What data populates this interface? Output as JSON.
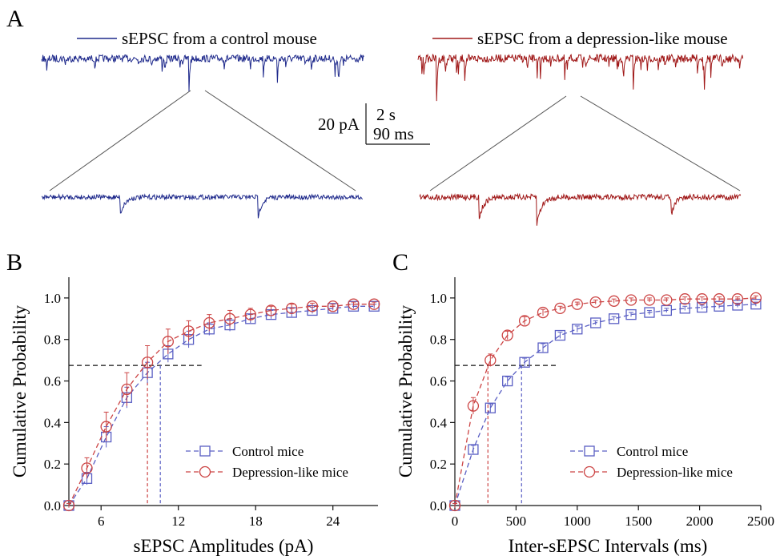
{
  "panel_a": {
    "label": "A",
    "legend_left": "sEPSC from a control mouse",
    "legend_right": "sEPSC from a depression-like mouse",
    "scale_y": "20 pA",
    "scale_x_top": "2 s",
    "scale_x_bottom": "90 ms"
  },
  "colors": {
    "control": "#1f2a8c",
    "depression": "#a01818",
    "control_light": "#5a5fc4",
    "depression_light": "#cc4444"
  },
  "chart_data": [
    {
      "panel": "B",
      "type": "line",
      "xlabel": "sEPSC Amplitudes (pA)",
      "ylabel": "Cumulative Probability",
      "xlim": [
        3.5,
        27.5
      ],
      "ylim": [
        0,
        1.1
      ],
      "xticks": [
        6,
        12,
        18,
        24
      ],
      "yticks": [
        0.0,
        0.2,
        0.4,
        0.6,
        0.8,
        1.0
      ],
      "ytick_labels": [
        "0.0",
        "0.2",
        "0.4",
        "0.6",
        "0.8",
        "1.0"
      ],
      "legend": [
        "Control mice",
        "Depression-like mice"
      ],
      "series": [
        {
          "name": "Control mice",
          "marker": "square",
          "x": [
            3.5,
            4.9,
            6.4,
            8.0,
            9.6,
            11.2,
            12.8,
            14.4,
            16.0,
            17.6,
            19.2,
            20.8,
            22.4,
            24.0,
            25.6,
            27.2
          ],
          "y": [
            0.0,
            0.13,
            0.33,
            0.52,
            0.64,
            0.73,
            0.8,
            0.85,
            0.87,
            0.9,
            0.92,
            0.93,
            0.94,
            0.95,
            0.96,
            0.96
          ],
          "err": [
            0.01,
            0.03,
            0.05,
            0.05,
            0.05,
            0.04,
            0.04,
            0.03,
            0.03,
            0.02,
            0.02,
            0.02,
            0.015,
            0.01,
            0.01,
            0.01
          ]
        },
        {
          "name": "Depression-like mice",
          "marker": "circle",
          "x": [
            3.5,
            4.9,
            6.4,
            8.0,
            9.6,
            11.2,
            12.8,
            14.4,
            16.0,
            17.6,
            19.2,
            20.8,
            22.4,
            24.0,
            25.6,
            27.2
          ],
          "y": [
            0.0,
            0.18,
            0.38,
            0.56,
            0.69,
            0.79,
            0.84,
            0.88,
            0.9,
            0.92,
            0.94,
            0.95,
            0.96,
            0.96,
            0.97,
            0.97
          ],
          "err": [
            0.01,
            0.05,
            0.07,
            0.08,
            0.08,
            0.06,
            0.05,
            0.04,
            0.04,
            0.03,
            0.02,
            0.02,
            0.015,
            0.01,
            0.01,
            0.01
          ]
        }
      ],
      "reference_y": 0.675,
      "reference_x_control": 10.6,
      "reference_x_depression": 9.6
    },
    {
      "panel": "C",
      "type": "line",
      "xlabel": "Inter-sEPSC Intervals (ms)",
      "ylabel": "Cumulative Probability",
      "xlim": [
        0,
        2500
      ],
      "ylim": [
        0,
        1.1
      ],
      "xticks": [
        0,
        500,
        1000,
        1500,
        2000,
        2500
      ],
      "yticks": [
        0.0,
        0.2,
        0.4,
        0.6,
        0.8,
        1.0
      ],
      "ytick_labels": [
        "0.0",
        "0.2",
        "0.4",
        "0.6",
        "0.8",
        "1.0"
      ],
      "legend": [
        "Control mice",
        "Depression-like mice"
      ],
      "series": [
        {
          "name": "Control mice",
          "marker": "square",
          "x": [
            0,
            150,
            290,
            430,
            570,
            720,
            860,
            1000,
            1150,
            1300,
            1440,
            1590,
            1730,
            1880,
            2020,
            2160,
            2310,
            2460
          ],
          "y": [
            0.0,
            0.27,
            0.47,
            0.6,
            0.69,
            0.76,
            0.82,
            0.85,
            0.88,
            0.9,
            0.92,
            0.93,
            0.94,
            0.95,
            0.955,
            0.96,
            0.965,
            0.97
          ],
          "err": [
            0.01,
            0.02,
            0.02,
            0.02,
            0.02,
            0.02,
            0.015,
            0.015,
            0.01,
            0.01,
            0.01,
            0.01,
            0.01,
            0.01,
            0.01,
            0.01,
            0.01,
            0.01
          ]
        },
        {
          "name": "Depression-like mice",
          "marker": "circle",
          "x": [
            0,
            150,
            290,
            430,
            570,
            720,
            860,
            1000,
            1150,
            1300,
            1440,
            1590,
            1730,
            1880,
            2020,
            2160,
            2310,
            2460
          ],
          "y": [
            0.0,
            0.48,
            0.7,
            0.82,
            0.89,
            0.93,
            0.95,
            0.97,
            0.98,
            0.985,
            0.99,
            0.99,
            0.99,
            0.995,
            0.995,
            0.995,
            0.995,
            1.0
          ],
          "err": [
            0.01,
            0.04,
            0.03,
            0.02,
            0.02,
            0.015,
            0.01,
            0.01,
            0.01,
            0.01,
            0.01,
            0.01,
            0.01,
            0.01,
            0.01,
            0.01,
            0.01,
            0.01
          ]
        }
      ],
      "reference_y": 0.675,
      "reference_x_control": 545,
      "reference_x_depression": 270
    }
  ],
  "panel_labels": {
    "b": "B",
    "c": "C"
  }
}
